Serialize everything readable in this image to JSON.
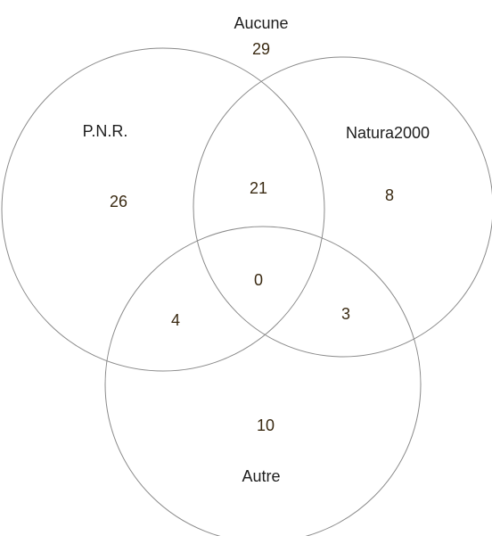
{
  "outside": {
    "label": "Aucune",
    "count": 29
  },
  "sets": [
    {
      "label": "P.N.R."
    },
    {
      "label": "Natura2000"
    },
    {
      "label": "Autre"
    }
  ],
  "regions": [
    26,
    21,
    8,
    4,
    0,
    3,
    10
  ]
}
